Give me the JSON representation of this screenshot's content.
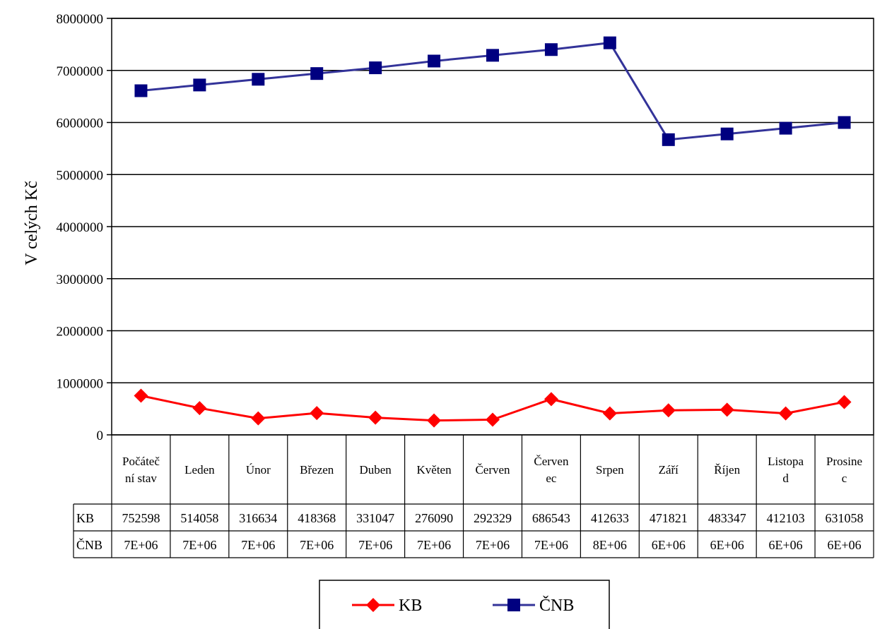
{
  "chart_data": {
    "type": "line",
    "ylabel": "V celých Kč",
    "ylim": [
      0,
      8000000
    ],
    "yticks": [
      "0",
      "1000000",
      "2000000",
      "3000000",
      "4000000",
      "5000000",
      "6000000",
      "7000000",
      "8000000"
    ],
    "grid": true,
    "legend_position": "bottom",
    "categories": [
      "Počáteční stav",
      "Leden",
      "Únor",
      "Březen",
      "Duben",
      "Květen",
      "Červen",
      "Červenec",
      "Srpen",
      "Září",
      "Říjen",
      "Listopad",
      "Prosinec"
    ],
    "category_lines": [
      [
        "Počáteč",
        "ní stav"
      ],
      [
        "Leden"
      ],
      [
        "Únor"
      ],
      [
        "Březen"
      ],
      [
        "Duben"
      ],
      [
        "Květen"
      ],
      [
        "Červen"
      ],
      [
        "Červen",
        "ec"
      ],
      [
        "Srpen"
      ],
      [
        "Září"
      ],
      [
        "Říjen"
      ],
      [
        "Listopa",
        "d"
      ],
      [
        "Prosine",
        "c"
      ]
    ],
    "series": [
      {
        "name": "KB",
        "color": "#ff0000",
        "marker": "diamond",
        "values": [
          752598,
          514058,
          316634,
          418368,
          331047,
          276090,
          292329,
          686543,
          412633,
          471821,
          483347,
          412103,
          631058
        ],
        "table_values": [
          "752598",
          "514058",
          "316634",
          "418368",
          "331047",
          "276090",
          "292329",
          "686543",
          "412633",
          "471821",
          "483347",
          "412103",
          "631058"
        ]
      },
      {
        "name": "ČNB",
        "color": "#333399",
        "marker": "square",
        "values": [
          6610000,
          6720000,
          6830000,
          6940000,
          7050000,
          7180000,
          7290000,
          7400000,
          7530000,
          5670000,
          5780000,
          5890000,
          6000000
        ],
        "table_values": [
          "7E+06",
          "7E+06",
          "7E+06",
          "7E+06",
          "7E+06",
          "7E+06",
          "7E+06",
          "7E+06",
          "8E+06",
          "6E+06",
          "6E+06",
          "6E+06",
          "6E+06"
        ]
      }
    ]
  }
}
